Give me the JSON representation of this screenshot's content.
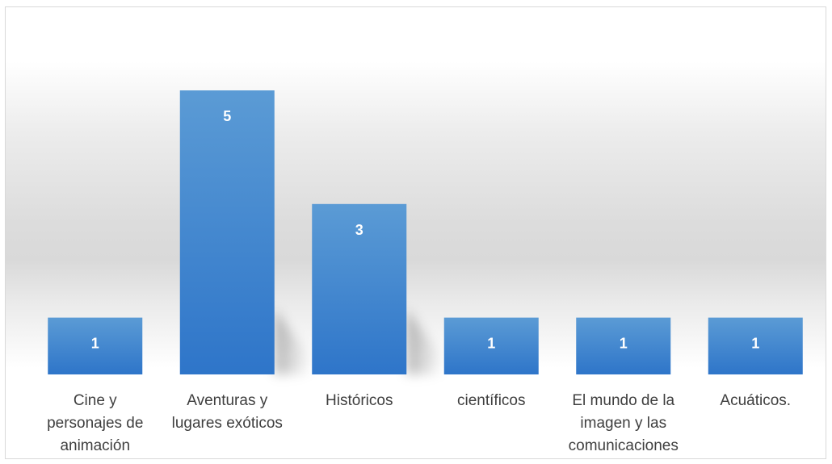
{
  "chart_data": {
    "type": "bar",
    "title": "",
    "xlabel": "",
    "ylabel": "",
    "ylim": [
      0,
      5
    ],
    "grid": false,
    "legend": "none",
    "categories": [
      [
        "Cine y",
        "personajes de",
        "animación"
      ],
      [
        "Aventuras y",
        "lugares exóticos"
      ],
      [
        "Históricos"
      ],
      [
        "científicos"
      ],
      [
        "El mundo de la",
        "imagen y las",
        "comunicaciones"
      ],
      [
        "Acuáticos."
      ]
    ],
    "values": [
      1,
      5,
      3,
      1,
      1,
      1
    ],
    "data_labels": [
      "1",
      "5",
      "3",
      "1",
      "1",
      "1"
    ],
    "colors": {
      "bar_top": "#5b9bd5",
      "bar_bottom": "#2e75c9",
      "label_text": "#ffffff",
      "axis_text": "#3f3f3f",
      "frame_border": "#d9d9d9"
    }
  }
}
